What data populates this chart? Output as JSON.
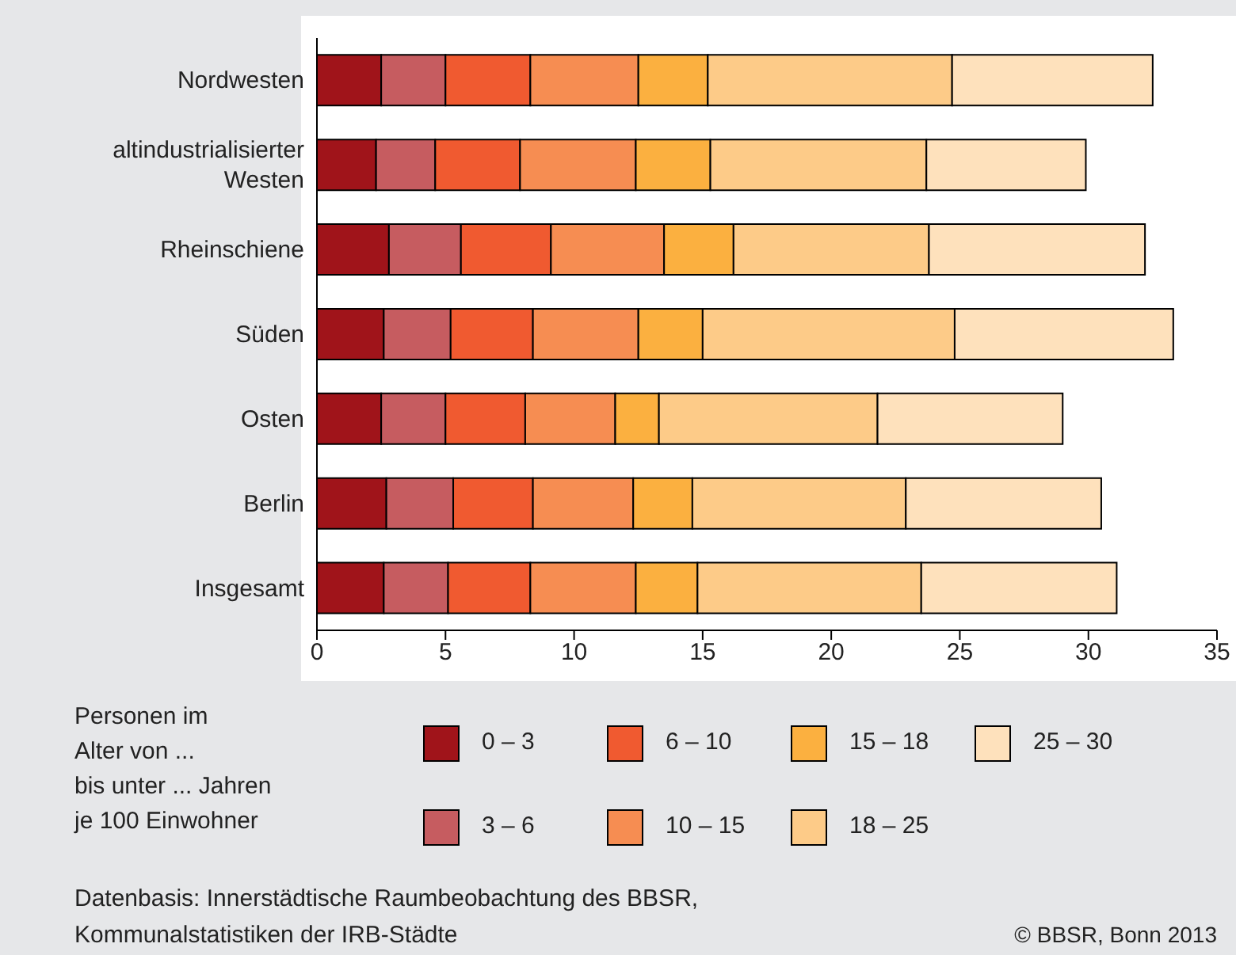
{
  "chart_data": {
    "type": "bar",
    "orientation": "horizontal",
    "stacked": true,
    "categories": [
      "Nordwesten",
      "altindustrialisierter Westen",
      "Rheinschiene",
      "Süden",
      "Osten",
      "Berlin",
      "Insgesamt"
    ],
    "series": [
      {
        "name": "0 – 3",
        "color": "#a0141a",
        "values": [
          2.5,
          2.3,
          2.8,
          2.6,
          2.5,
          2.7,
          2.6
        ]
      },
      {
        "name": "3 – 6",
        "color": "#c65c60",
        "values": [
          2.5,
          2.3,
          2.8,
          2.6,
          2.5,
          2.6,
          2.5
        ]
      },
      {
        "name": "6 – 10",
        "color": "#f05a30",
        "values": [
          3.3,
          3.3,
          3.5,
          3.2,
          3.1,
          3.1,
          3.2
        ]
      },
      {
        "name": "10 – 15",
        "color": "#f68d52",
        "values": [
          4.2,
          4.5,
          4.4,
          4.1,
          3.5,
          3.9,
          4.1
        ]
      },
      {
        "name": "15 – 18",
        "color": "#fbb040",
        "values": [
          2.7,
          2.9,
          2.7,
          2.5,
          1.7,
          2.3,
          2.4
        ]
      },
      {
        "name": "18 – 25",
        "color": "#fdcb88",
        "values": [
          9.5,
          8.4,
          7.6,
          9.8,
          8.5,
          8.3,
          8.7
        ]
      },
      {
        "name": "25 – 30",
        "color": "#fee1bc",
        "values": [
          7.8,
          6.2,
          8.4,
          8.5,
          7.2,
          7.6,
          7.6
        ]
      }
    ],
    "xlim": [
      0,
      35
    ],
    "xticks": [
      0,
      5,
      10,
      15,
      20,
      25,
      30,
      35
    ],
    "grid": false,
    "legend": "bottom",
    "legend_title": "Personen im Alter von ... bis unter ... Jahren je 100 Einwohner",
    "annotations": [
      "Datenbasis: Innerstädtische Raumbeobachtung des BBSR, Kommunalstatistiken der IRB-Städte",
      "© BBSR, Bonn 2013"
    ]
  }
}
